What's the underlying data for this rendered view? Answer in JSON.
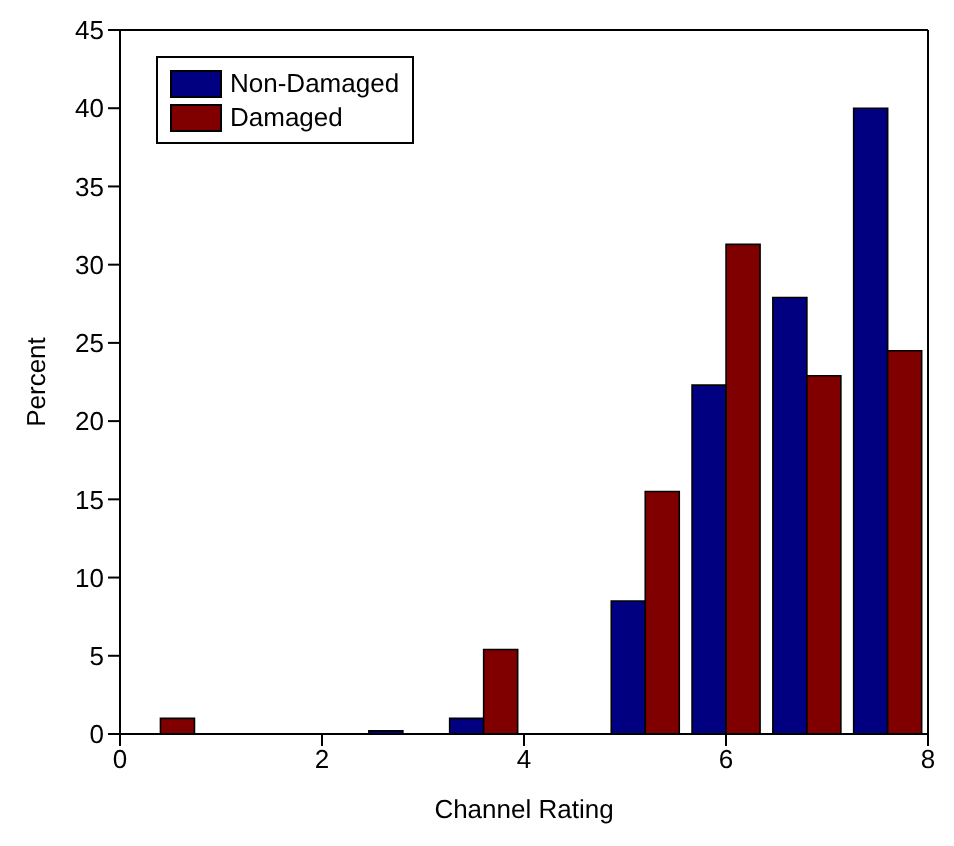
{
  "chart_data": {
    "type": "histogram",
    "xlabel": "Channel Rating",
    "ylabel": "Percent",
    "bins": [
      0,
      0.8,
      1.6,
      2.4,
      3.2,
      4,
      4.8,
      5.6,
      6.4,
      7.2,
      8
    ],
    "series": [
      {
        "name": "Non-Damaged",
        "color": "#000080",
        "values": [
          0,
          0,
          0,
          0.2,
          1,
          0,
          8.5,
          22.3,
          27.9,
          40
        ]
      },
      {
        "name": "Damaged",
        "color": "#800000",
        "values": [
          1,
          0,
          0,
          0,
          5.4,
          0,
          15.5,
          31.3,
          22.9,
          24.5
        ]
      }
    ],
    "xlim": [
      0,
      8
    ],
    "xticks": [
      0,
      2,
      4,
      6,
      8
    ],
    "ylim": [
      0,
      45
    ],
    "yticks": [
      0,
      5,
      10,
      15,
      20,
      25,
      30,
      35,
      40,
      45
    ],
    "grid": false,
    "legend": "top left"
  }
}
